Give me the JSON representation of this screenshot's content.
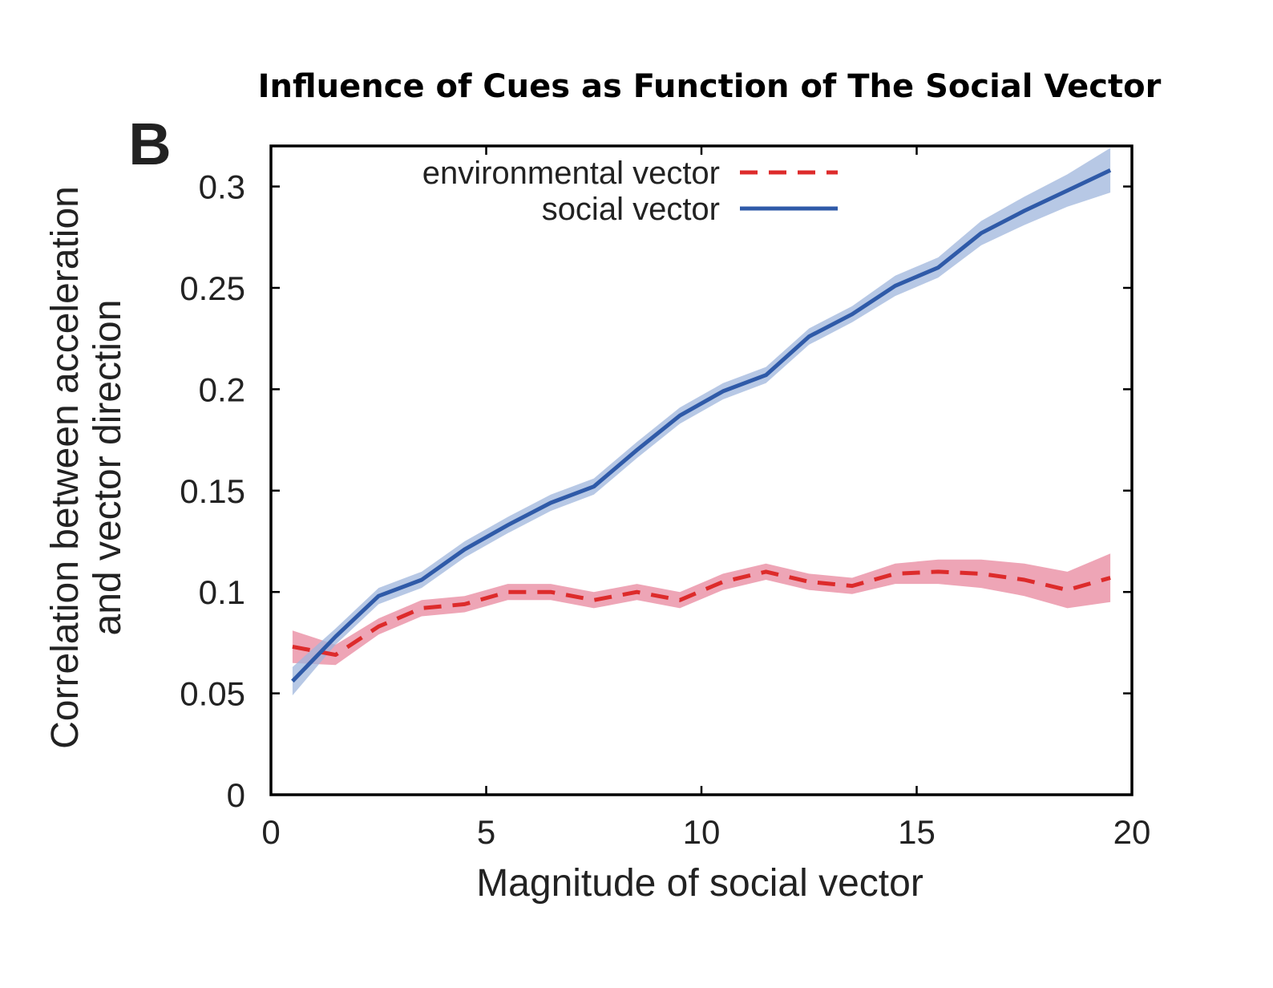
{
  "chart_data": {
    "type": "line",
    "title": "Influence of Cues as Function of The Social Vector",
    "panel_label": "B",
    "xlabel": "Magnitude of social vector",
    "ylabel_line1": "Correlation between acceleration",
    "ylabel_line2": "and vector direction",
    "xlim": [
      0,
      20
    ],
    "ylim": [
      0,
      0.32
    ],
    "xticks": [
      0,
      5,
      10,
      15,
      20
    ],
    "xtick_labels": [
      "0",
      "5",
      "10",
      "15",
      "20"
    ],
    "yticks": [
      0,
      0.05,
      0.1,
      0.15,
      0.2,
      0.25,
      0.3
    ],
    "ytick_labels": [
      "0",
      "0.05",
      "0.1",
      "0.15",
      "0.2",
      "0.25",
      "0.3"
    ],
    "grid": false,
    "legend_position": "top-center",
    "x": [
      0.5,
      1.5,
      2.5,
      3.5,
      4.5,
      5.5,
      6.5,
      7.5,
      8.5,
      9.5,
      10.5,
      11.5,
      12.5,
      13.5,
      14.5,
      15.5,
      16.5,
      17.5,
      18.5,
      19.5
    ],
    "series": [
      {
        "name": "environmental vector",
        "style": "dashed",
        "color": "#dd2b2b",
        "band_color": "#e8879e",
        "values": [
          0.073,
          0.069,
          0.083,
          0.092,
          0.094,
          0.1,
          0.1,
          0.096,
          0.1,
          0.096,
          0.105,
          0.11,
          0.105,
          0.103,
          0.109,
          0.11,
          0.109,
          0.106,
          0.101,
          0.107
        ],
        "band_half_width": [
          0.008,
          0.005,
          0.004,
          0.004,
          0.004,
          0.004,
          0.004,
          0.004,
          0.004,
          0.004,
          0.004,
          0.004,
          0.004,
          0.004,
          0.005,
          0.006,
          0.007,
          0.008,
          0.009,
          0.012
        ]
      },
      {
        "name": "social vector",
        "style": "solid",
        "color": "#2f5aa8",
        "band_color": "#9fb5dc",
        "values": [
          0.056,
          0.078,
          0.098,
          0.106,
          0.121,
          0.133,
          0.144,
          0.152,
          0.17,
          0.187,
          0.199,
          0.207,
          0.226,
          0.237,
          0.251,
          0.26,
          0.277,
          0.288,
          0.298,
          0.308
        ],
        "band_half_width": [
          0.007,
          0.004,
          0.004,
          0.004,
          0.004,
          0.004,
          0.004,
          0.004,
          0.004,
          0.004,
          0.004,
          0.004,
          0.004,
          0.004,
          0.005,
          0.005,
          0.006,
          0.007,
          0.008,
          0.011
        ]
      }
    ]
  }
}
